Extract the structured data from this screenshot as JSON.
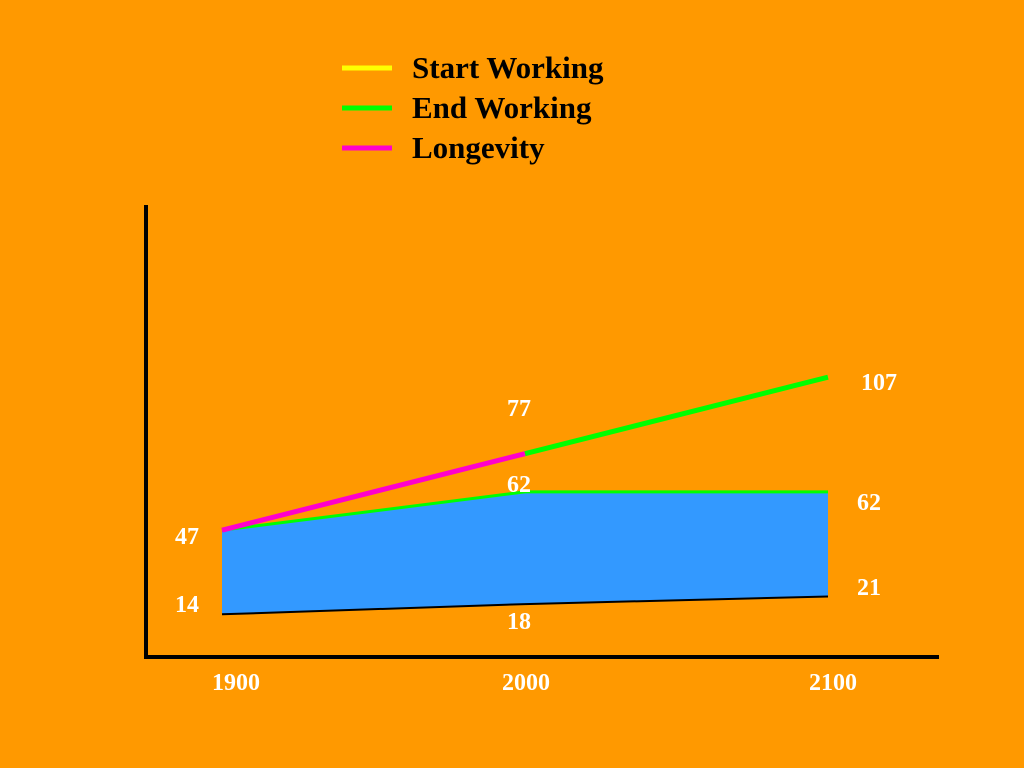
{
  "chart_data": {
    "type": "area",
    "categories": [
      "1900",
      "2000",
      "2100"
    ],
    "x": [
      1900,
      2000,
      2100
    ],
    "xlabel": "",
    "ylabel": "",
    "grid": false,
    "legend_position": "top-center",
    "legend": [
      {
        "name": "Start Working",
        "color": "#FFFF00"
      },
      {
        "name": "End Working",
        "color": "#00FF00"
      },
      {
        "name": "Longevity",
        "color": "#FF00CC"
      }
    ],
    "series": [
      {
        "name": "Start Working",
        "values": [
          14,
          18,
          21
        ],
        "labels": [
          "14",
          "18",
          "21"
        ],
        "color": "#000000"
      },
      {
        "name": "End Working",
        "values": [
          47,
          62,
          62
        ],
        "labels": [
          "47",
          "62",
          "62"
        ],
        "color": "#00FF00"
      },
      {
        "name": "Longevity",
        "values": [
          47,
          77,
          107
        ],
        "labels": [
          "",
          "77",
          "107"
        ],
        "colors": [
          "#FF00CC",
          "#00FF00"
        ]
      }
    ],
    "fill_between": {
      "lower": "Start Working",
      "upper": "End Working",
      "color": "#3399FF"
    }
  }
}
